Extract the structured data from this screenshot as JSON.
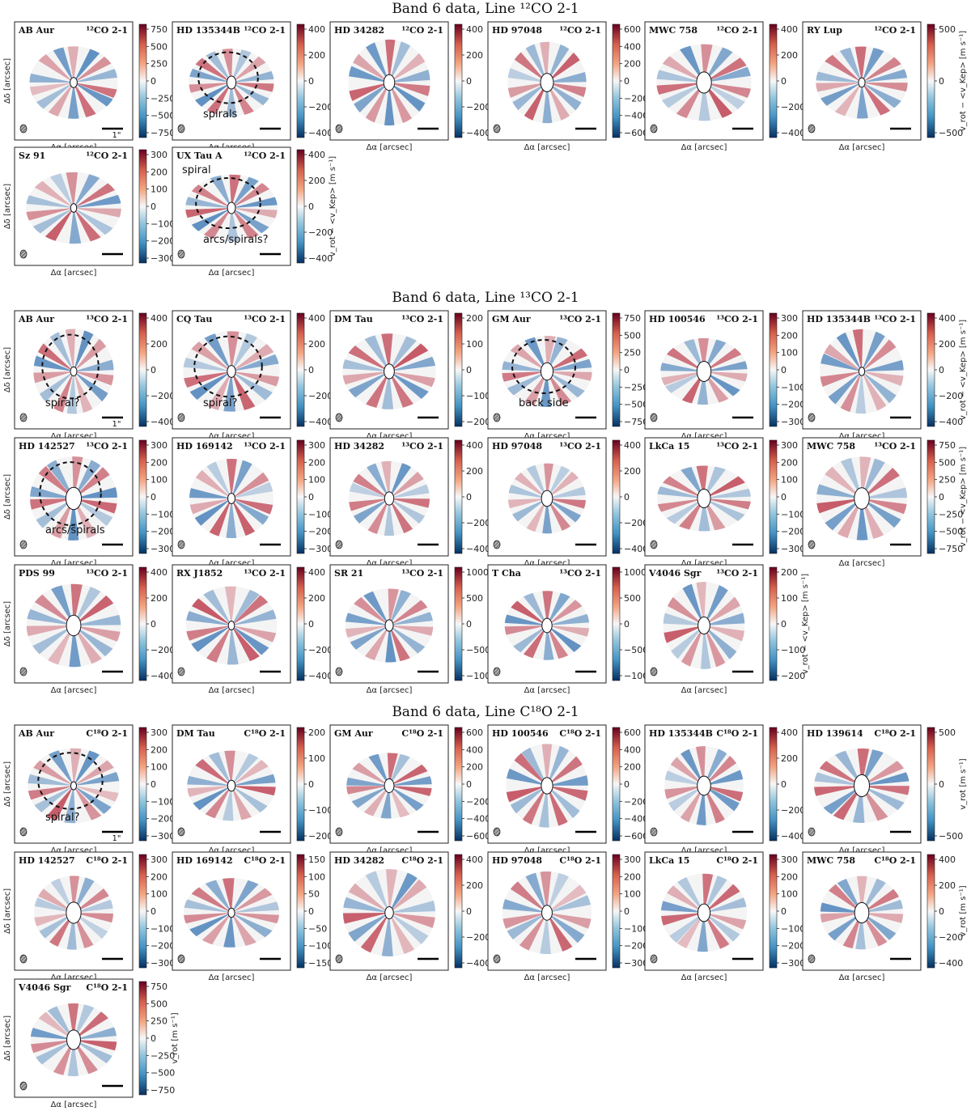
{
  "figure": {
    "sections": [
      {
        "title": "Band 6 data, Line ¹²CO 2-1",
        "rows": [
          [
            {
              "name": "AB Aur",
              "line": "¹²CO 2-1",
              "ticks": [
                "750",
                "500",
                "250",
                "0",
                "−250",
                "−500",
                "−750"
              ],
              "annotations": [],
              "scalebar": "1\"",
              "dashed": false,
              "cbar_label": ""
            },
            {
              "name": "HD 135344B",
              "line": "¹²CO 2-1",
              "ticks": [
                "400",
                "200",
                "0",
                "−200",
                "−400"
              ],
              "annotations": [
                "spirals"
              ],
              "dashed": true,
              "cbar_label": ""
            },
            {
              "name": "HD 34282",
              "line": "¹²CO 2-1",
              "ticks": [
                "400",
                "200",
                "0",
                "−200",
                "−400"
              ],
              "annotations": [],
              "dashed": false,
              "cbar_label": ""
            },
            {
              "name": "HD 97048",
              "line": "¹²CO 2-1",
              "ticks": [
                "600",
                "400",
                "200",
                "0",
                "−200",
                "−400",
                "−600"
              ],
              "annotations": [],
              "dashed": false,
              "cbar_label": ""
            },
            {
              "name": "MWC 758",
              "line": "¹²CO 2-1",
              "ticks": [
                "400",
                "200",
                "0",
                "−200",
                "−400"
              ],
              "annotations": [],
              "dashed": false,
              "cbar_label": ""
            },
            {
              "name": "RY Lup",
              "line": "¹²CO 2-1",
              "ticks": [
                "500",
                "0",
                "−500"
              ],
              "annotations": [],
              "dashed": false,
              "cbar_label": "v_rot − <v_Kep> [m s⁻¹]"
            }
          ],
          [
            {
              "name": "Sz 91",
              "line": "¹²CO 2-1",
              "ticks": [
                "300",
                "200",
                "100",
                "0",
                "−100",
                "−200",
                "−300"
              ],
              "annotations": [],
              "dashed": false,
              "cbar_label": ""
            },
            {
              "name": "UX Tau A",
              "line": "¹²CO 2-1",
              "ticks": [
                "400",
                "200",
                "0",
                "−200",
                "−400"
              ],
              "annotations": [
                "arcs/spirals?",
                "spiral"
              ],
              "dashed": true,
              "cbar_label": "v_rot − <v_Kep> [m s⁻¹]"
            }
          ]
        ]
      },
      {
        "title": "Band 6 data, Line ¹³CO 2-1",
        "rows": [
          [
            {
              "name": "AB Aur",
              "line": "¹³CO 2-1",
              "ticks": [
                "400",
                "200",
                "0",
                "−200",
                "−400"
              ],
              "annotations": [
                "spiral?"
              ],
              "scalebar": "1\"",
              "dashed": true,
              "cbar_label": ""
            },
            {
              "name": "CQ Tau",
              "line": "¹³CO 2-1",
              "ticks": [
                "400",
                "200",
                "0",
                "−200",
                "−400"
              ],
              "annotations": [
                "spiral?"
              ],
              "dashed": true,
              "cbar_label": ""
            },
            {
              "name": "DM Tau",
              "line": "¹³CO 2-1",
              "ticks": [
                "200",
                "100",
                "0",
                "−100",
                "−200"
              ],
              "annotations": [],
              "dashed": false,
              "cbar_label": ""
            },
            {
              "name": "GM Aur",
              "line": "¹³CO 2-1",
              "ticks": [
                "750",
                "500",
                "250",
                "0",
                "−250",
                "−500",
                "−750"
              ],
              "annotations": [
                "back side"
              ],
              "dashed": true,
              "cbar_label": ""
            },
            {
              "name": "HD 100546",
              "line": "¹³CO 2-1",
              "ticks": [
                "300",
                "200",
                "100",
                "0",
                "−100",
                "−200",
                "−300"
              ],
              "annotations": [],
              "dashed": false,
              "cbar_label": ""
            },
            {
              "name": "HD 135344B",
              "line": "¹³CO 2-1",
              "ticks": [
                "400",
                "200",
                "0",
                "−200",
                "−400"
              ],
              "annotations": [],
              "dashed": false,
              "cbar_label": "v_rot − <v_Kep> [m s⁻¹]"
            }
          ],
          [
            {
              "name": "HD 142527",
              "line": "¹³CO 2-1",
              "ticks": [
                "300",
                "200",
                "100",
                "0",
                "−100",
                "−200",
                "−300"
              ],
              "annotations": [
                "arcs/spirals"
              ],
              "dashed": true,
              "cbar_label": ""
            },
            {
              "name": "HD 169142",
              "line": "¹³CO 2-1",
              "ticks": [
                "300",
                "200",
                "100",
                "0",
                "−100",
                "−200",
                "−300"
              ],
              "annotations": [],
              "dashed": false,
              "cbar_label": ""
            },
            {
              "name": "HD 34282",
              "line": "¹³CO 2-1",
              "ticks": [
                "400",
                "200",
                "0",
                "−200",
                "−400"
              ],
              "annotations": [],
              "dashed": false,
              "cbar_label": ""
            },
            {
              "name": "HD 97048",
              "line": "¹³CO 2-1",
              "ticks": [
                "400",
                "200",
                "0",
                "−200",
                "−400"
              ],
              "annotations": [],
              "dashed": false,
              "cbar_label": ""
            },
            {
              "name": "LkCa 15",
              "line": "¹³CO 2-1",
              "ticks": [
                "300",
                "200",
                "100",
                "0",
                "−100",
                "−200",
                "−300"
              ],
              "annotations": [],
              "dashed": false,
              "cbar_label": ""
            },
            {
              "name": "MWC 758",
              "line": "¹³CO 2-1",
              "ticks": [
                "750",
                "500",
                "250",
                "0",
                "−250",
                "−500",
                "−750"
              ],
              "annotations": [],
              "dashed": false,
              "cbar_label": "v_rot − <v_Kep> [m s⁻¹]"
            }
          ],
          [
            {
              "name": "PDS 99",
              "line": "¹³CO 2-1",
              "ticks": [
                "400",
                "200",
                "0",
                "−200",
                "−400"
              ],
              "annotations": [],
              "dashed": false,
              "cbar_label": ""
            },
            {
              "name": "RX J1852",
              "line": "¹³CO 2-1",
              "ticks": [
                "400",
                "200",
                "0",
                "−200",
                "−400"
              ],
              "annotations": [],
              "dashed": false,
              "cbar_label": ""
            },
            {
              "name": "SR 21",
              "line": "¹³CO 2-1",
              "ticks": [
                "1000",
                "500",
                "0",
                "−500",
                "−1000"
              ],
              "annotations": [],
              "dashed": false,
              "cbar_label": ""
            },
            {
              "name": "T Cha",
              "line": "¹³CO 2-1",
              "ticks": [
                "1000",
                "500",
                "0",
                "−500",
                "−1000"
              ],
              "annotations": [],
              "dashed": false,
              "cbar_label": ""
            },
            {
              "name": "V4046 Sgr",
              "line": "¹³CO 2-1",
              "ticks": [
                "200",
                "100",
                "0",
                "−100",
                "−200"
              ],
              "annotations": [],
              "dashed": false,
              "cbar_label": "v_rot − <v_Kep> [m s⁻¹]"
            }
          ]
        ]
      },
      {
        "title": "Band 6 data, Line C¹⁸O 2-1",
        "rows": [
          [
            {
              "name": "AB Aur",
              "line": "C¹⁸O 2-1",
              "ticks": [
                "300",
                "200",
                "100",
                "0",
                "−100",
                "−200",
                "−300"
              ],
              "annotations": [
                "spiral?"
              ],
              "scalebar": "1\"",
              "dashed": true,
              "cbar_label": ""
            },
            {
              "name": "DM Tau",
              "line": "C¹⁸O 2-1",
              "ticks": [
                "200",
                "100",
                "0",
                "−100",
                "−200"
              ],
              "annotations": [],
              "dashed": false,
              "cbar_label": ""
            },
            {
              "name": "GM Aur",
              "line": "C¹⁸O 2-1",
              "ticks": [
                "600",
                "400",
                "200",
                "0",
                "−200",
                "−400",
                "−600"
              ],
              "annotations": [],
              "dashed": false,
              "cbar_label": ""
            },
            {
              "name": "HD 100546",
              "line": "C¹⁸O 2-1",
              "ticks": [
                "600",
                "400",
                "200",
                "0",
                "−200",
                "−400",
                "−600"
              ],
              "annotations": [],
              "dashed": false,
              "cbar_label": ""
            },
            {
              "name": "HD 135344B",
              "line": "C¹⁸O 2-1",
              "ticks": [
                "400",
                "200",
                "0",
                "−200",
                "−400"
              ],
              "annotations": [],
              "dashed": false,
              "cbar_label": ""
            },
            {
              "name": "HD 139614",
              "line": "C¹⁸O 2-1",
              "ticks": [
                "500",
                "0",
                "−500"
              ],
              "annotations": [],
              "dashed": false,
              "cbar_label": "v_rot [m s⁻¹]"
            }
          ],
          [
            {
              "name": "HD 142527",
              "line": "C¹⁸O 2-1",
              "ticks": [
                "300",
                "200",
                "100",
                "0",
                "−100",
                "−200",
                "−300"
              ],
              "annotations": [],
              "dashed": false,
              "cbar_label": ""
            },
            {
              "name": "HD 169142",
              "line": "C¹⁸O 2-1",
              "ticks": [
                "150",
                "100",
                "50",
                "0",
                "−50",
                "−100",
                "−150"
              ],
              "annotations": [],
              "dashed": false,
              "cbar_label": ""
            },
            {
              "name": "HD 34282",
              "line": "C¹⁸O 2-1",
              "ticks": [
                "400",
                "200",
                "0",
                "−200",
                "−400"
              ],
              "annotations": [],
              "dashed": false,
              "cbar_label": ""
            },
            {
              "name": "HD 97048",
              "line": "C¹⁸O 2-1",
              "ticks": [
                "300",
                "200",
                "100",
                "0",
                "−100",
                "−200",
                "−300"
              ],
              "annotations": [],
              "dashed": false,
              "cbar_label": ""
            },
            {
              "name": "LkCa 15",
              "line": "C¹⁸O 2-1",
              "ticks": [
                "300",
                "200",
                "100",
                "0",
                "−100",
                "−200",
                "−300"
              ],
              "annotations": [],
              "dashed": false,
              "cbar_label": ""
            },
            {
              "name": "MWC 758",
              "line": "C¹⁸O 2-1",
              "ticks": [
                "400",
                "200",
                "0",
                "−200",
                "−400"
              ],
              "annotations": [],
              "dashed": false,
              "cbar_label": "v_rot [m s⁻¹]"
            }
          ],
          [
            {
              "name": "V4046 Sgr",
              "line": "C¹⁸O 2-1",
              "ticks": [
                "750",
                "500",
                "250",
                "0",
                "−250",
                "−500",
                "−750"
              ],
              "annotations": [],
              "dashed": false,
              "cbar_label": "v_rot [m s⁻¹]"
            }
          ]
        ]
      }
    ],
    "axis_x_label": "Δα [arcsec]",
    "axis_y_label": "Δδ [arcsec]",
    "colormap": {
      "positive": "#b2182b",
      "zero": "#f7f7f7",
      "negative": "#2166ac"
    }
  }
}
